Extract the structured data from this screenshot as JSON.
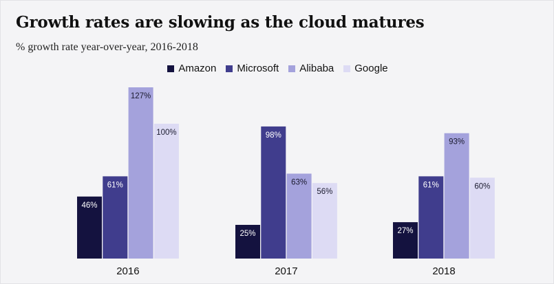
{
  "header": {
    "title": "Growth rates are slowing as the cloud matures",
    "subtitle": "% growth rate year-over-year, 2016-2018"
  },
  "legend": {
    "position": "top-center",
    "items": [
      {
        "label": "Amazon",
        "color": "#14123f"
      },
      {
        "label": "Microsoft",
        "color": "#403d8d"
      },
      {
        "label": "Alibaba",
        "color": "#a4a2dc"
      },
      {
        "label": "Google",
        "color": "#dddbf4"
      }
    ]
  },
  "chart_data": {
    "type": "bar",
    "title": "Growth rates are slowing as the cloud matures",
    "subtitle": "% growth rate year-over-year, 2016-2018",
    "xlabel": "",
    "ylabel": "",
    "ylim": [
      0,
      127
    ],
    "grid": false,
    "legend_position": "top-center",
    "categories": [
      "2016",
      "2017",
      "2018"
    ],
    "series": [
      {
        "name": "Amazon",
        "color": "#14123f",
        "label_color": "#ffffff",
        "values": [
          46,
          25,
          27
        ],
        "labels": [
          "46%",
          "25%",
          "27%"
        ]
      },
      {
        "name": "Microsoft",
        "color": "#403d8d",
        "label_color": "#ffffff",
        "values": [
          61,
          98,
          61
        ],
        "labels": [
          "61%",
          "98%",
          "61%"
        ]
      },
      {
        "name": "Alibaba",
        "color": "#a4a2dc",
        "label_color": "#1a1a2e",
        "values": [
          127,
          63,
          93
        ],
        "labels": [
          "127%",
          "63%",
          "93%"
        ]
      },
      {
        "name": "Google",
        "color": "#dddbf4",
        "label_color": "#1a1a2e",
        "values": [
          100,
          56,
          60
        ],
        "labels": [
          "100%",
          "56%",
          "60%"
        ]
      }
    ]
  }
}
